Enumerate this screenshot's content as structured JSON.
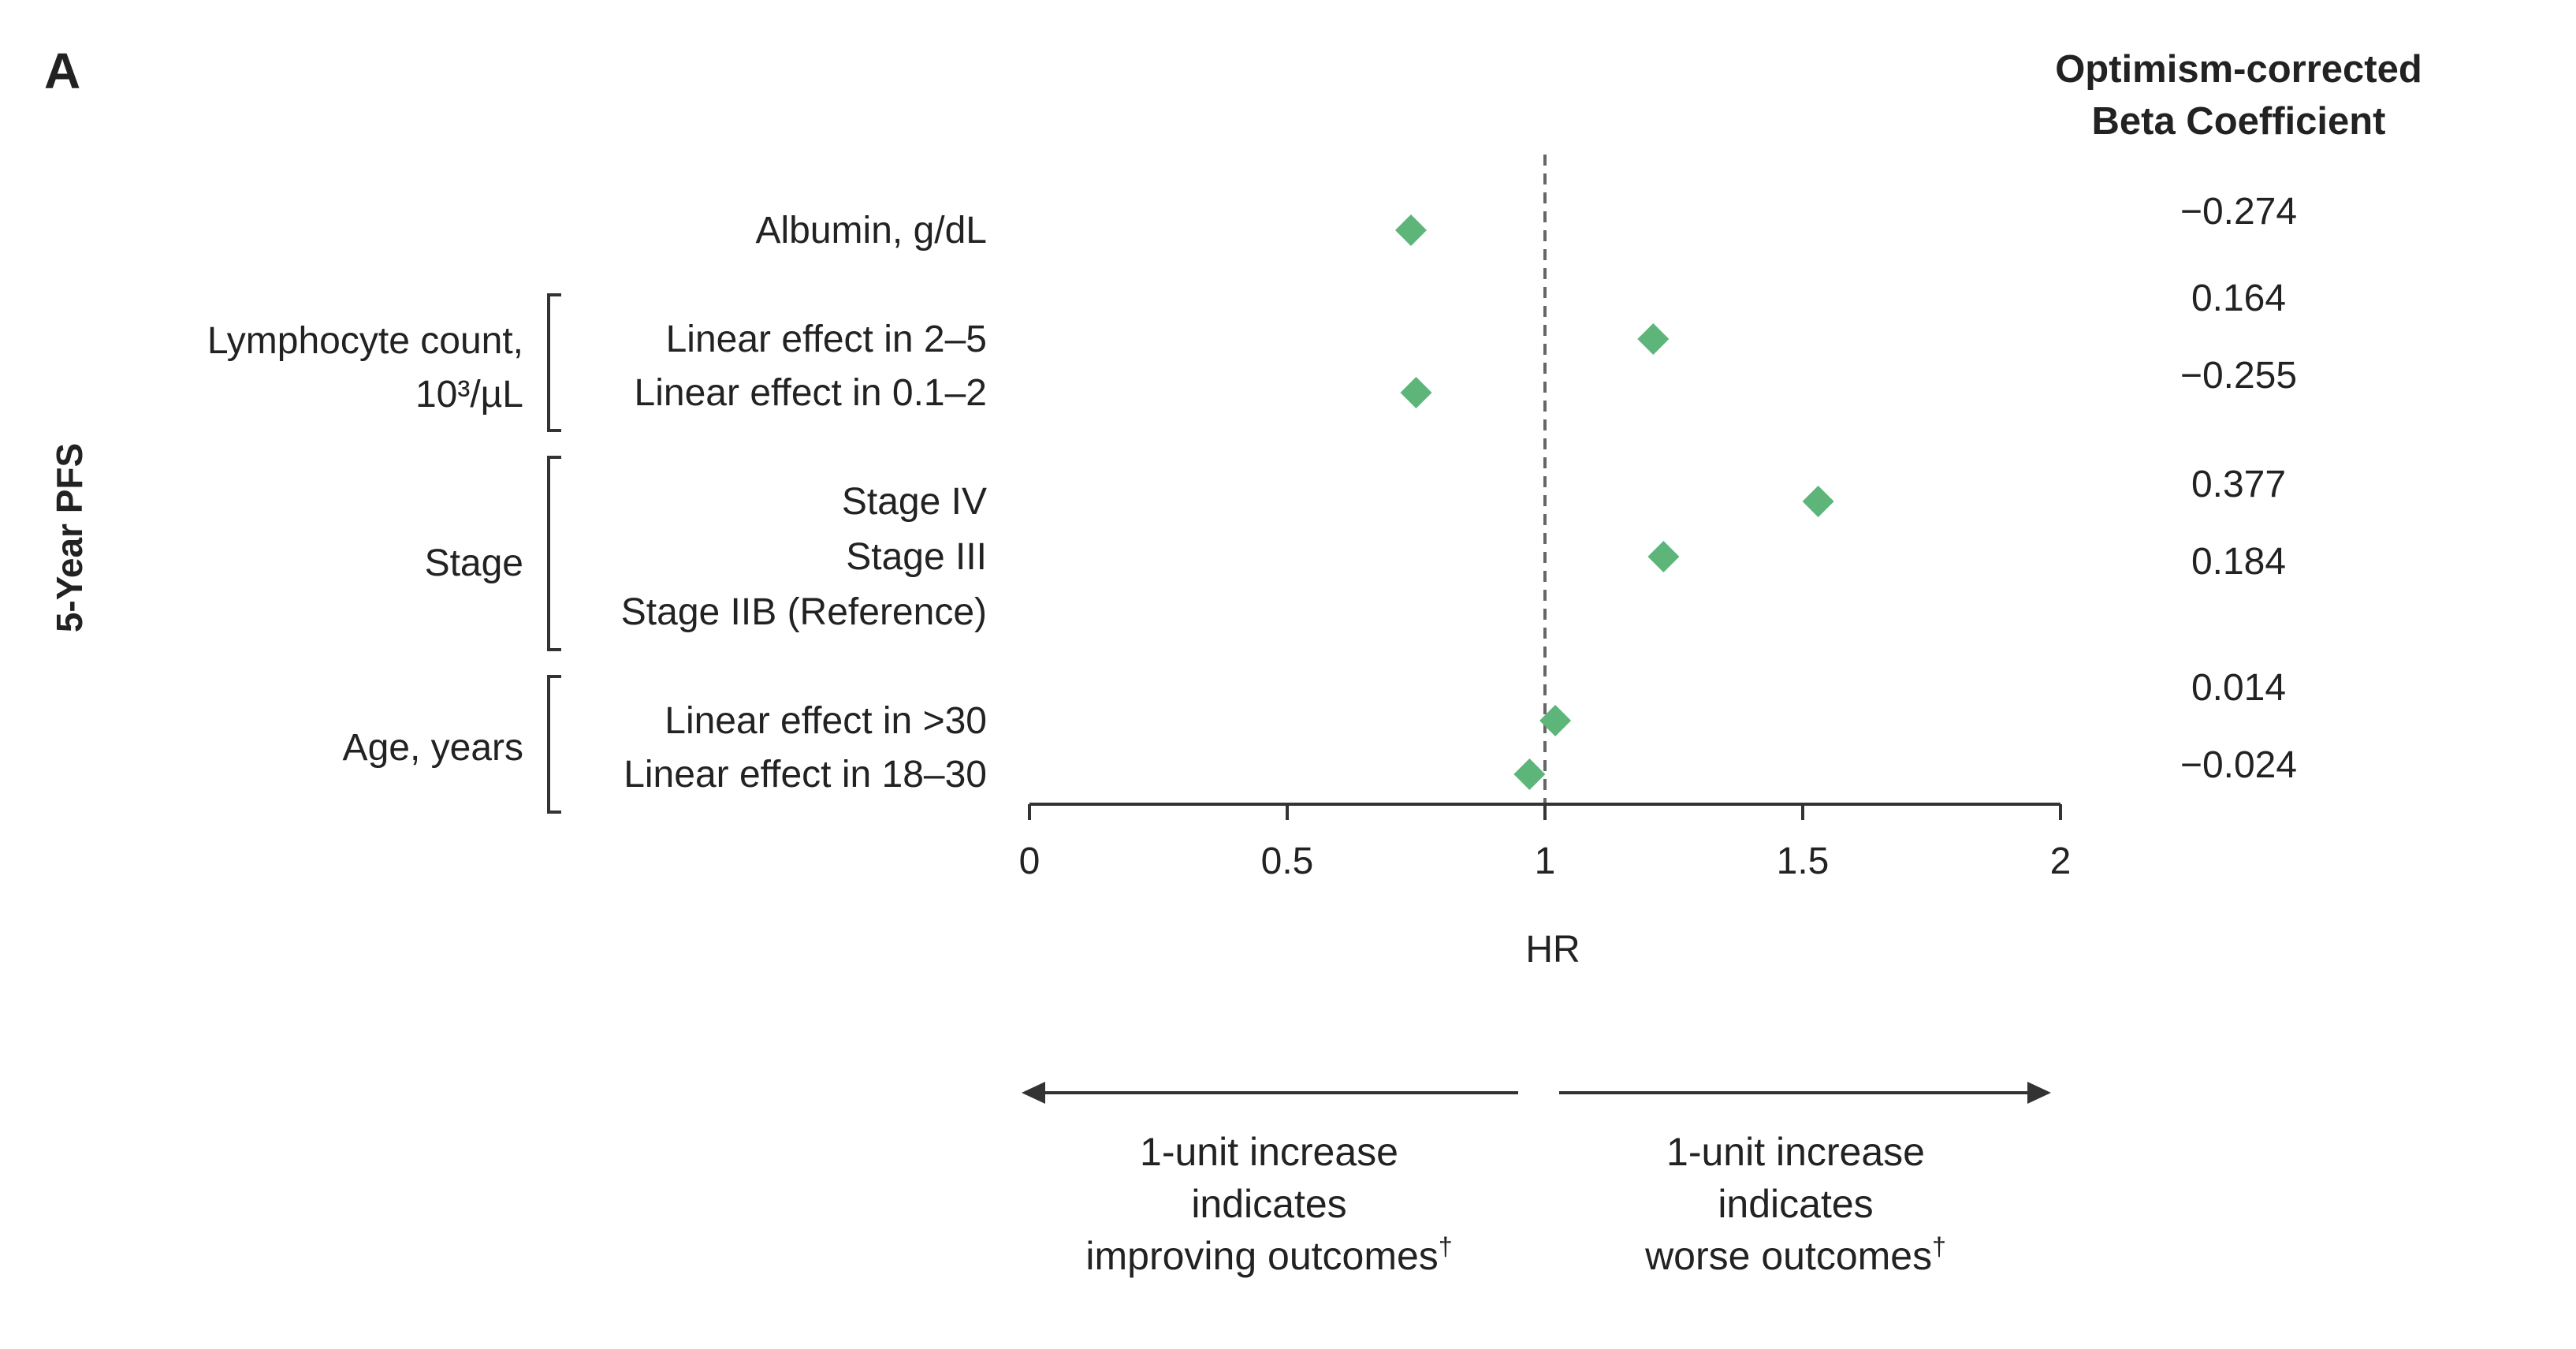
{
  "panel_label": "A",
  "y_title": "5-Year PFS",
  "beta_header": [
    "Optimism-corrected",
    "Beta Coefficient"
  ],
  "chart_data": {
    "type": "scatter",
    "title": "",
    "xlabel": "HR",
    "xlim": [
      0,
      2
    ],
    "xticks": [
      "0",
      "0.5",
      "1",
      "1.5",
      "2"
    ],
    "reference_line": 1,
    "marker": "diamond",
    "marker_color": "#5db57a",
    "groups": [
      {
        "label": "",
        "rows": [
          {
            "label": "Albumin, g/dL",
            "hr": 0.74,
            "beta": "−0.274"
          }
        ]
      },
      {
        "label_lines": [
          "Lymphocyte count,",
          "10³/µL"
        ],
        "rows": [
          {
            "label": "Linear effect in 2–5",
            "hr": 1.21,
            "beta": "0.164"
          },
          {
            "label": "Linear effect in 0.1–2",
            "hr": 0.75,
            "beta": "−0.255"
          }
        ]
      },
      {
        "label_lines": [
          "Stage"
        ],
        "rows": [
          {
            "label": "Stage IV",
            "hr": 1.53,
            "beta": "0.377"
          },
          {
            "label": "Stage III",
            "hr": 1.23,
            "beta": "0.184"
          },
          {
            "label": "Stage IIB (Reference)",
            "hr": null,
            "beta": ""
          }
        ]
      },
      {
        "label_lines": [
          "Age, years"
        ],
        "rows": [
          {
            "label": "Linear effect in >30",
            "hr": 1.02,
            "beta": "0.014"
          },
          {
            "label": "Linear effect in 18–30",
            "hr": 0.97,
            "beta": "−0.024"
          }
        ]
      }
    ],
    "annotations": {
      "left": [
        "1-unit increase",
        "indicates",
        "improving outcomes"
      ],
      "right": [
        "1-unit increase",
        "indicates",
        "worse outcomes"
      ],
      "footnote_mark": "†"
    }
  }
}
